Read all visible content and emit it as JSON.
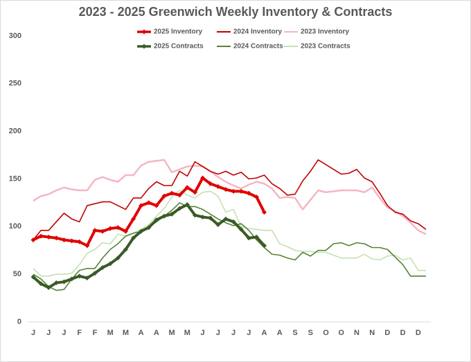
{
  "chart_data": {
    "type": "line",
    "title": "2023 - 2025 Greenwich Weekly Inventory & Contracts",
    "categories": [
      "J",
      null,
      "J",
      null,
      "J",
      null,
      "F",
      null,
      "F",
      null,
      "M",
      null,
      "M",
      null,
      "A",
      null,
      "A",
      null,
      "M",
      null,
      "M",
      null,
      "J",
      null,
      "J",
      null,
      "J",
      null,
      "J",
      null,
      "A",
      null,
      "A",
      null,
      "S",
      null,
      "S",
      null,
      "O",
      null,
      "O",
      null,
      "N",
      null,
      "N",
      null,
      "D",
      null,
      "D",
      null,
      "D",
      null
    ],
    "series": [
      {
        "name": "2025 Inventory",
        "color": "#e00000",
        "marker": "diamond",
        "values": [
          86,
          90,
          89,
          88,
          86,
          85,
          84,
          80,
          96,
          95,
          98,
          99,
          95,
          108,
          122,
          125,
          122,
          132,
          135,
          133,
          141,
          136,
          151,
          145,
          142,
          139,
          137,
          137,
          135,
          131,
          115,
          null,
          null,
          null,
          null,
          null,
          null,
          null,
          null,
          null,
          null,
          null,
          null,
          null,
          null,
          null,
          null,
          null,
          null,
          null,
          null,
          null
        ]
      },
      {
        "name": "2024 Inventory",
        "color": "#c00000",
        "values": [
          86,
          96,
          96,
          105,
          114,
          108,
          105,
          122,
          124,
          126,
          126,
          122,
          118,
          130,
          130,
          140,
          147,
          143,
          143,
          158,
          153,
          168,
          163,
          158,
          155,
          158,
          154,
          157,
          150,
          151,
          154,
          145,
          140,
          133,
          134,
          148,
          158,
          170,
          165,
          160,
          155,
          156,
          160,
          151,
          147,
          135,
          122,
          115,
          113,
          106,
          103,
          97
        ]
      },
      {
        "name": "2023 Inventory",
        "color": "#f4b6c2",
        "values": [
          127,
          132,
          134,
          138,
          141,
          139,
          138,
          138,
          149,
          152,
          149,
          147,
          154,
          154,
          164,
          168,
          169,
          170,
          157,
          160,
          163,
          164,
          163,
          158,
          152,
          147,
          143,
          140,
          144,
          147,
          145,
          140,
          130,
          131,
          130,
          118,
          128,
          138,
          136,
          137,
          138,
          138,
          138,
          136,
          141,
          130,
          120,
          116,
          111,
          104,
          96,
          92
        ]
      },
      {
        "name": "2025 Contracts",
        "color": "#3b5a26",
        "marker": "diamond",
        "values": [
          47,
          40,
          36,
          41,
          42,
          45,
          48,
          46,
          51,
          57,
          61,
          67,
          76,
          88,
          95,
          99,
          107,
          111,
          113,
          119,
          123,
          112,
          110,
          109,
          102,
          108,
          105,
          97,
          88,
          89,
          80,
          null,
          null,
          null,
          null,
          null,
          null,
          null,
          null,
          null,
          null,
          null,
          null,
          null,
          null,
          null,
          null,
          null,
          null,
          null,
          null,
          null
        ]
      },
      {
        "name": "2024 Contracts",
        "color": "#548235",
        "values": [
          50,
          45,
          37,
          33,
          34,
          45,
          54,
          56,
          56,
          67,
          76,
          82,
          90,
          93,
          95,
          99,
          105,
          111,
          117,
          125,
          121,
          121,
          118,
          113,
          108,
          104,
          101,
          103,
          96,
          86,
          78,
          71,
          70,
          67,
          65,
          73,
          69,
          75,
          75,
          82,
          83,
          80,
          83,
          82,
          78,
          78,
          76,
          68,
          60,
          48,
          48,
          48
        ]
      },
      {
        "name": "2023 Contracts",
        "color": "#c5e0b4",
        "values": [
          56,
          48,
          48,
          50,
          50,
          51,
          60,
          72,
          76,
          83,
          82,
          92,
          90,
          93,
          97,
          102,
          111,
          119,
          131,
          138,
          133,
          130,
          136,
          137,
          132,
          115,
          118,
          100,
          98,
          97,
          96,
          96,
          82,
          79,
          75,
          74,
          74,
          73,
          73,
          70,
          67,
          67,
          67,
          71,
          66,
          65,
          69,
          70,
          65,
          67,
          54,
          54
        ]
      }
    ],
    "ylim": [
      0,
      300
    ],
    "yticks": [
      0,
      50,
      100,
      150,
      200,
      250,
      300
    ],
    "grid": false
  }
}
